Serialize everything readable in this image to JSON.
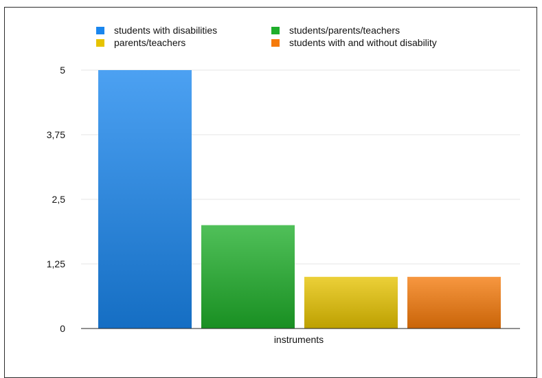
{
  "chart_data": {
    "type": "bar",
    "title": "",
    "xlabel": "",
    "ylabel": "",
    "categories": [
      "instruments"
    ],
    "ylim": [
      0,
      5
    ],
    "yticks": [
      0,
      1.25,
      2.5,
      3.75,
      5
    ],
    "ytick_labels": [
      "0",
      "1,25",
      "2,5",
      "3,75",
      "5"
    ],
    "grid": true,
    "legend_position": "top",
    "series": [
      {
        "name": "students with disabilities",
        "values": [
          5
        ],
        "color": "#1a86ee"
      },
      {
        "name": "students/parents/teachers",
        "values": [
          2
        ],
        "color": "#1fae2a"
      },
      {
        "name": "parents/teachers",
        "values": [
          1
        ],
        "color": "#e6c300"
      },
      {
        "name": "students with and without disability",
        "values": [
          1
        ],
        "color": "#f57a0a"
      }
    ]
  }
}
